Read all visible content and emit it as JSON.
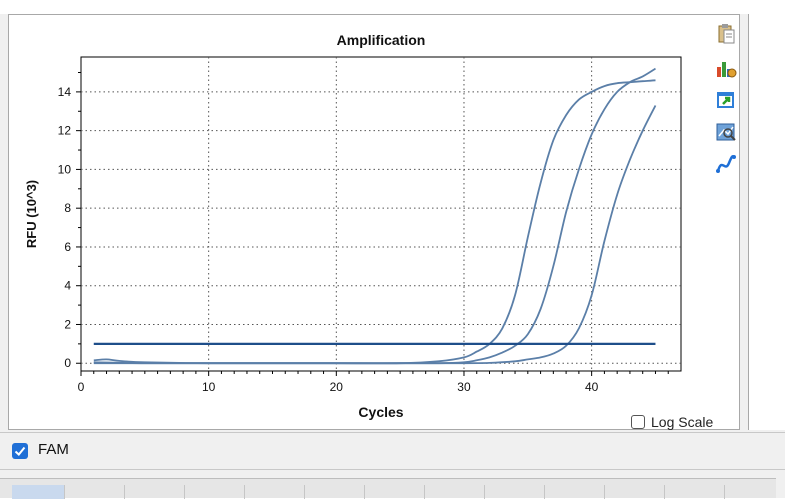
{
  "chart_data": {
    "type": "line",
    "title": "Amplification",
    "xlabel": "Cycles",
    "ylabel": "RFU (10^3)",
    "xlim": [
      0,
      47
    ],
    "ylim": [
      -0.4,
      15.8
    ],
    "xticks": [
      0,
      10,
      20,
      30,
      40
    ],
    "yticks": [
      0,
      2,
      4,
      6,
      8,
      10,
      12,
      14
    ],
    "grid": true,
    "threshold": 1.0,
    "series": [
      {
        "x": [
          1,
          2,
          3,
          5,
          10,
          15,
          20,
          25,
          28,
          30,
          31,
          32,
          33,
          34,
          35,
          36,
          37,
          38,
          39,
          40,
          41,
          42,
          43,
          44,
          45
        ],
        "y": [
          0.15,
          0.2,
          0.12,
          0.05,
          0.0,
          0.0,
          0.0,
          0.0,
          0.1,
          0.3,
          0.6,
          1.0,
          1.8,
          3.5,
          6.5,
          9.3,
          11.5,
          12.8,
          13.6,
          14.0,
          14.3,
          14.45,
          14.5,
          14.55,
          14.6
        ]
      },
      {
        "x": [
          1,
          5,
          10,
          15,
          20,
          25,
          28,
          30,
          31,
          32,
          33,
          34,
          35,
          36,
          37,
          38,
          39,
          40,
          41,
          42,
          43,
          44,
          45
        ],
        "y": [
          0.05,
          0.0,
          0.0,
          0.0,
          0.0,
          0.0,
          0.0,
          0.05,
          0.15,
          0.3,
          0.55,
          0.9,
          1.5,
          2.8,
          5.0,
          7.8,
          10.0,
          11.8,
          13.1,
          14.0,
          14.5,
          14.8,
          15.2
        ]
      },
      {
        "x": [
          1,
          5,
          10,
          15,
          20,
          25,
          30,
          32,
          34,
          35,
          36,
          37,
          38,
          39,
          40,
          41,
          42,
          43,
          44,
          45
        ],
        "y": [
          0.0,
          0.0,
          0.0,
          0.0,
          0.0,
          0.0,
          0.0,
          0.02,
          0.1,
          0.2,
          0.3,
          0.5,
          0.9,
          1.8,
          3.5,
          6.3,
          8.7,
          10.5,
          12.0,
          13.3
        ]
      }
    ]
  },
  "legend_checkbox": {
    "label": "FAM",
    "checked": true
  },
  "log_scale": {
    "label": "Log Scale",
    "checked": false
  },
  "toolbar": [
    {
      "icon": "clipboard-icon"
    },
    {
      "icon": "bar-chart-settings-icon"
    },
    {
      "icon": "export-icon"
    },
    {
      "icon": "zoom-chart-icon"
    },
    {
      "icon": "curve-fit-icon"
    }
  ],
  "colors": {
    "curve": "#5b7fa8",
    "threshold": "#1e4e8a",
    "check": "#1f6fd6"
  }
}
